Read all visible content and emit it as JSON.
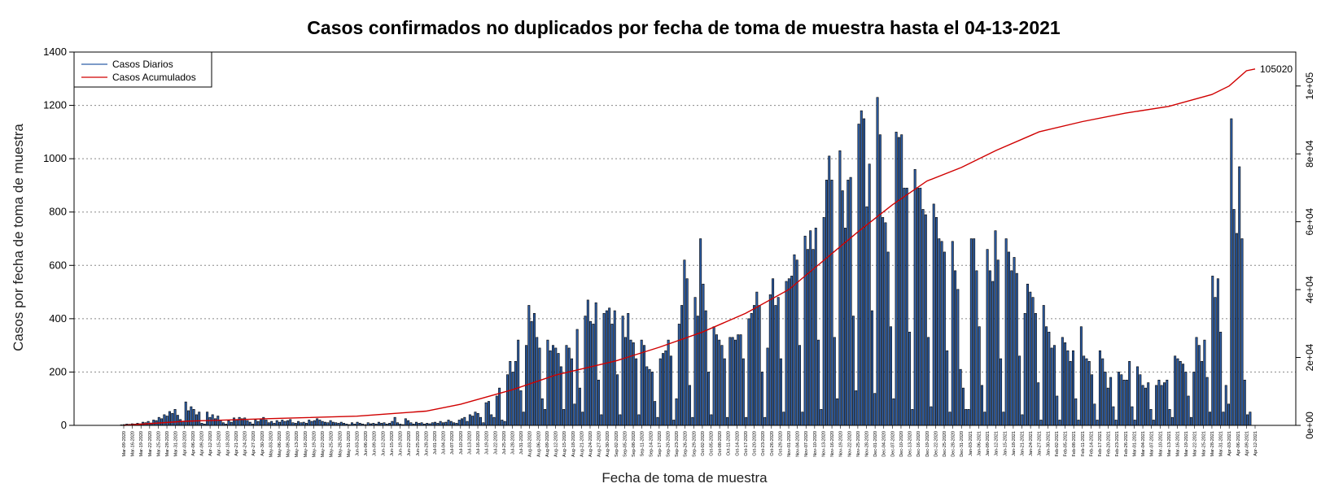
{
  "chart_data": {
    "type": "bar",
    "title": "Casos confirmados no duplicados por fecha de toma de muestra hasta el 04-13-2021",
    "xlabel": "Fecha de toma de muestra",
    "ylabel": "Casos por fecha de toma de muestra",
    "ylim": [
      0,
      1400
    ],
    "yticks": [
      "0",
      "200",
      "400",
      "600",
      "800",
      "1000",
      "1200",
      "1400"
    ],
    "y2lim": [
      0,
      110000
    ],
    "y2ticks": [
      "0e+00",
      "2e+04",
      "4e+04",
      "6e+04",
      "8e+04",
      "1e+05"
    ],
    "grid": "horizontal dotted",
    "legend_position": "top-left",
    "colors": {
      "daily": "#2e5fa8",
      "cumulative": "#d00000",
      "bar_border": "#000000"
    },
    "x_tick_labels": [
      "Mar-09-2020",
      "Mar-16-2020",
      "Mar-19-2020",
      "Mar-22-2020",
      "Mar-25-2020",
      "Mar-28-2020",
      "Mar-31-2020",
      "Apr-03-2020",
      "Apr-06-2020",
      "Apr-09-2020",
      "Apr-12-2020",
      "Apr-15-2020",
      "Apr-18-2020",
      "Apr-21-2020",
      "Apr-24-2020",
      "Apr-27-2020",
      "Apr-30-2020",
      "May-03-2020",
      "May-06-2020",
      "May-09-2020",
      "May-13-2020",
      "May-16-2020",
      "May-19-2020",
      "May-22-2020",
      "May-25-2020",
      "May-28-2020",
      "May-31-2020",
      "Jun-03-2020",
      "Jun-06-2020",
      "Jun-09-2020",
      "Jun-12-2020",
      "Jun-15-2020",
      "Jun-19-2020",
      "Jun-22-2020",
      "Jun-25-2020",
      "Jun-28-2020",
      "Jul-01-2020",
      "Jul-04-2020",
      "Jul-07-2020",
      "Jul-10-2020",
      "Jul-13-2020",
      "Jul-16-2020",
      "Jul-19-2020",
      "Jul-22-2020",
      "Jul-25-2020",
      "Jul-28-2020",
      "Jul-31-2020",
      "Aug-03-2020",
      "Aug-06-2020",
      "Aug-09-2020",
      "Aug-12-2020",
      "Aug-15-2020",
      "Aug-18-2020",
      "Aug-21-2020",
      "Aug-24-2020",
      "Aug-27-2020",
      "Aug-30-2020",
      "Sep-02-2020",
      "Sep-05-2020",
      "Sep-08-2020",
      "Sep-11-2020",
      "Sep-14-2020",
      "Sep-17-2020",
      "Sep-20-2020",
      "Sep-23-2020",
      "Sep-26-2020",
      "Sep-29-2020",
      "Oct-02-2020",
      "Oct-05-2020",
      "Oct-08-2020",
      "Oct-11-2020",
      "Oct-14-2020",
      "Oct-17-2020",
      "Oct-20-2020",
      "Oct-23-2020",
      "Oct-26-2020",
      "Oct-29-2020",
      "Nov-01-2020",
      "Nov-04-2020",
      "Nov-07-2020",
      "Nov-10-2020",
      "Nov-13-2020",
      "Nov-16-2020",
      "Nov-19-2020",
      "Nov-22-2020",
      "Nov-25-2020",
      "Nov-28-2020",
      "Dec-01-2020",
      "Dec-04-2020",
      "Dec-07-2020",
      "Dec-10-2020",
      "Dec-13-2020",
      "Dec-16-2020",
      "Dec-19-2020",
      "Dec-22-2020",
      "Dec-25-2020",
      "Dec-28-2020",
      "Dec-31-2020",
      "Jan-03-2021",
      "Jan-06-2021",
      "Jan-09-2021",
      "Jan-12-2021",
      "Jan-15-2021",
      "Jan-18-2021",
      "Jan-21-2021",
      "Jan-24-2021",
      "Jan-27-2021",
      "Jan-30-2021",
      "Feb-02-2021",
      "Feb-05-2021",
      "Feb-08-2021",
      "Feb-11-2021",
      "Feb-14-2021",
      "Feb-17-2021",
      "Feb-20-2021",
      "Feb-23-2021",
      "Feb-26-2021",
      "Mar-01-2021",
      "Mar-04-2021",
      "Mar-07-2021",
      "Mar-10-2021",
      "Mar-13-2021",
      "Mar-16-2021",
      "Mar-19-2021",
      "Mar-22-2021",
      "Mar-25-2021",
      "Mar-28-2021",
      "Mar-31-2021",
      "Apr-03-2021",
      "Apr-06-2021",
      "Apr-09-2021",
      "Apr-12-2021"
    ],
    "series": [
      {
        "name": "Casos Diarios",
        "type": "bar",
        "values": [
          2,
          3,
          5,
          4,
          6,
          5,
          8,
          6,
          12,
          10,
          15,
          9,
          20,
          18,
          30,
          25,
          40,
          35,
          52,
          45,
          60,
          38,
          22,
          15,
          88,
          55,
          70,
          60,
          40,
          50,
          8,
          5,
          50,
          30,
          40,
          25,
          35,
          20,
          10,
          5,
          18,
          12,
          28,
          20,
          30,
          25,
          28,
          18,
          12,
          5,
          20,
          15,
          25,
          30,
          20,
          10,
          15,
          8,
          18,
          12,
          20,
          15,
          18,
          22,
          10,
          8,
          15,
          10,
          12,
          8,
          20,
          15,
          18,
          25,
          20,
          15,
          12,
          10,
          18,
          12,
          10,
          8,
          12,
          8,
          5,
          3,
          10,
          5,
          12,
          8,
          5,
          3,
          10,
          6,
          8,
          5,
          12,
          8,
          10,
          5,
          8,
          15,
          30,
          10,
          5,
          3,
          25,
          18,
          10,
          5,
          12,
          8,
          10,
          5,
          8,
          6,
          10,
          12,
          8,
          15,
          10,
          12,
          20,
          15,
          10,
          8,
          20,
          25,
          30,
          15,
          40,
          35,
          50,
          45,
          30,
          10,
          85,
          90,
          40,
          30,
          110,
          140,
          20,
          15,
          190,
          240,
          200,
          240,
          320,
          130,
          50,
          300,
          450,
          390,
          420,
          330,
          290,
          100,
          60,
          320,
          280,
          300,
          290,
          270,
          220,
          60,
          300,
          290,
          250,
          80,
          360,
          140,
          50,
          410,
          470,
          390,
          380,
          460,
          170,
          40,
          420,
          430,
          440,
          380,
          430,
          190,
          40,
          410,
          330,
          420,
          320,
          310,
          250,
          40,
          320,
          300,
          220,
          210,
          200,
          90,
          30,
          250,
          270,
          280,
          320,
          260,
          20,
          100,
          380,
          450,
          620,
          550,
          150,
          30,
          480,
          410,
          700,
          530,
          430,
          200,
          40,
          370,
          340,
          320,
          300,
          250,
          30,
          330,
          330,
          320,
          340,
          340,
          250,
          30,
          400,
          420,
          450,
          500,
          450,
          200,
          30,
          290,
          490,
          550,
          450,
          480,
          250,
          50,
          540,
          550,
          560,
          640,
          620,
          300,
          50,
          710,
          660,
          730,
          660,
          740,
          320,
          60,
          780,
          920,
          1010,
          920,
          330,
          100,
          1030,
          880,
          740,
          920,
          930,
          410,
          130,
          1130,
          1180,
          1150,
          820,
          980,
          430,
          120,
          1230,
          1090,
          780,
          760,
          650,
          370,
          100,
          1100,
          1080,
          1090,
          890,
          890,
          350,
          60,
          960,
          890,
          890,
          810,
          790,
          330,
          70,
          830,
          780,
          700,
          690,
          650,
          280,
          50,
          690,
          580,
          510,
          210,
          140,
          60,
          60,
          700,
          700,
          580,
          370,
          150,
          50,
          660,
          580,
          540,
          730,
          620,
          250,
          50,
          700,
          650,
          580,
          630,
          570,
          260,
          40,
          420,
          530,
          500,
          480,
          420,
          160,
          20,
          450,
          370,
          350,
          290,
          300,
          110,
          20,
          330,
          310,
          280,
          240,
          280,
          100,
          20,
          370,
          260,
          250,
          240,
          190,
          80,
          20,
          280,
          250,
          200,
          140,
          180,
          70,
          20,
          200,
          190,
          170,
          170,
          240,
          70,
          20,
          220,
          190,
          150,
          140,
          160,
          60,
          20,
          150,
          170,
          150,
          160,
          170,
          60,
          30,
          260,
          250,
          240,
          230,
          200,
          110,
          30,
          200,
          330,
          300,
          240,
          320,
          180,
          50,
          560,
          480,
          550,
          350,
          50,
          150,
          80,
          1150,
          810,
          720,
          970,
          700,
          170,
          40,
          50
        ],
        "color": "#2e5fa8"
      },
      {
        "name": "Casos Acumulados",
        "type": "line",
        "axis": "right",
        "end_value": 105020,
        "end_label": "105020",
        "color": "#d00000",
        "points": [
          {
            "x": "Mar-09-2020",
            "y": 0
          },
          {
            "x": "Apr-03-2020",
            "y": 1200
          },
          {
            "x": "May-03-2020",
            "y": 2000
          },
          {
            "x": "Jun-03-2020",
            "y": 2700
          },
          {
            "x": "Jun-28-2020",
            "y": 4200
          },
          {
            "x": "Jul-10-2020",
            "y": 6200
          },
          {
            "x": "Jul-28-2020",
            "y": 10500
          },
          {
            "x": "Aug-12-2020",
            "y": 14800
          },
          {
            "x": "Sep-02-2020",
            "y": 19000
          },
          {
            "x": "Sep-17-2020",
            "y": 23000
          },
          {
            "x": "Oct-02-2020",
            "y": 27500
          },
          {
            "x": "Oct-17-2020",
            "y": 33000
          },
          {
            "x": "Nov-01-2020",
            "y": 40000
          },
          {
            "x": "Nov-13-2020",
            "y": 48500
          },
          {
            "x": "Nov-25-2020",
            "y": 57000
          },
          {
            "x": "Dec-07-2020",
            "y": 65000
          },
          {
            "x": "Dec-19-2020",
            "y": 72000
          },
          {
            "x": "Dec-31-2020",
            "y": 76000
          },
          {
            "x": "Jan-12-2021",
            "y": 81000
          },
          {
            "x": "Jan-27-2021",
            "y": 86500
          },
          {
            "x": "Feb-11-2021",
            "y": 89500
          },
          {
            "x": "Feb-26-2021",
            "y": 92000
          },
          {
            "x": "Mar-13-2021",
            "y": 94000
          },
          {
            "x": "Mar-28-2021",
            "y": 97500
          },
          {
            "x": "Apr-03-2021",
            "y": 100000
          },
          {
            "x": "Apr-09-2021",
            "y": 104500
          },
          {
            "x": "Apr-12-2021",
            "y": 105020
          }
        ]
      }
    ]
  }
}
